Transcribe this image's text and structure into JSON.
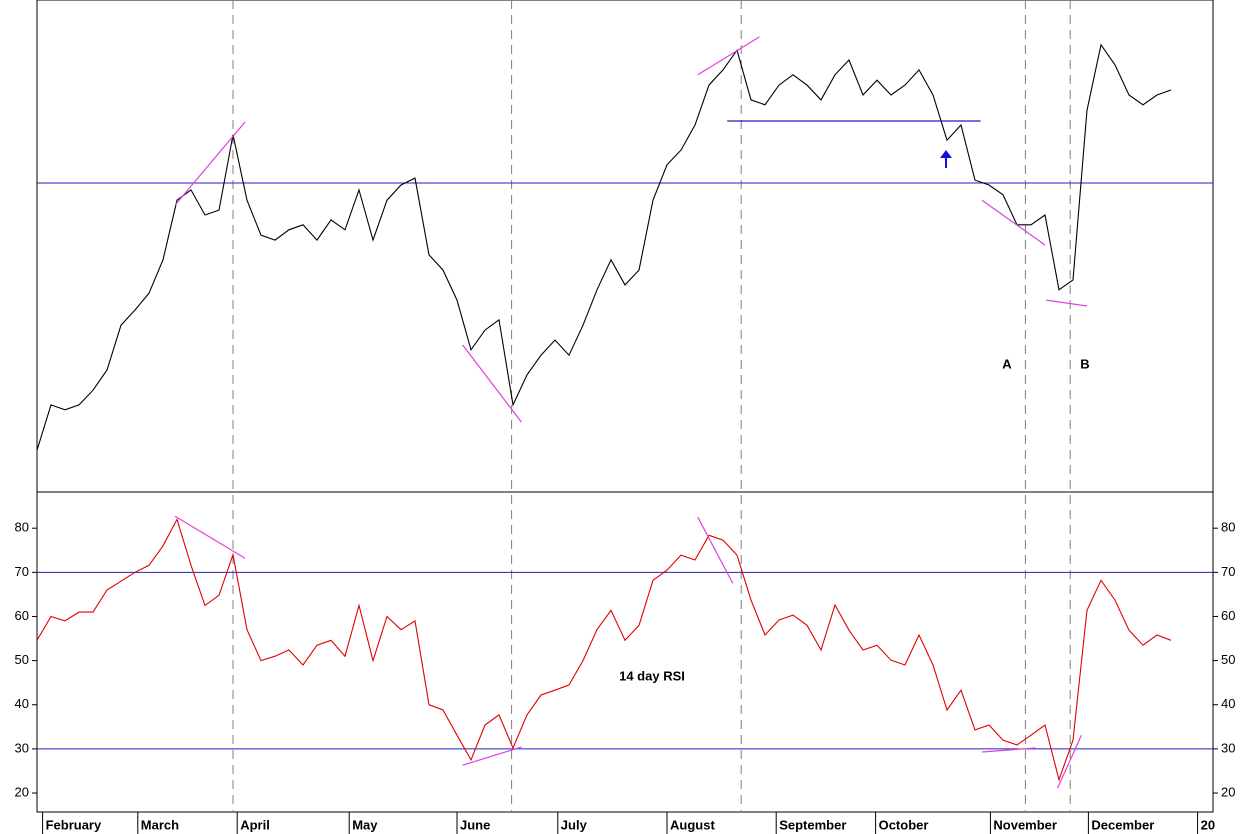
{
  "chart_data": [
    {
      "type": "line",
      "x": [
        0,
        1,
        2,
        3,
        4,
        5,
        6,
        7,
        8,
        9,
        10,
        11,
        12,
        13,
        14,
        15,
        16,
        17,
        18,
        19,
        20,
        21,
        22,
        23,
        24,
        25,
        26,
        27,
        28,
        29,
        30,
        31,
        32,
        33,
        34,
        35,
        36,
        37,
        38,
        39,
        40,
        41,
        42,
        43,
        44,
        45,
        46,
        47,
        48,
        49,
        50,
        51,
        52,
        53,
        54,
        55,
        56,
        57,
        58,
        59,
        60,
        61,
        62,
        63,
        64,
        65,
        66,
        67,
        68,
        69,
        70,
        71,
        72,
        73,
        74,
        75,
        76,
        77,
        78,
        79,
        80,
        81
      ],
      "series": [
        {
          "color": "#000000",
          "values": [
            8.5,
            17.7,
            16.7,
            17.7,
            20.7,
            24.8,
            33.9,
            37,
            40.4,
            47.2,
            59.3,
            61.4,
            56.3,
            57.3,
            72.6,
            59.3,
            52.2,
            51.2,
            53.3,
            54.3,
            51.2,
            55.3,
            53.3,
            61.4,
            51.2,
            59.3,
            62.4,
            63.8,
            48.2,
            45.1,
            39,
            28.9,
            32.9,
            35,
            17.7,
            23.8,
            27.8,
            30.9,
            27.8,
            33.9,
            41.1,
            47.2,
            42.1,
            45.1,
            59.3,
            66.5,
            69.5,
            74.6,
            82.7,
            85.8,
            89.8,
            79.7,
            78.7,
            82.7,
            84.8,
            82.7,
            79.7,
            84.8,
            87.8,
            80.7,
            83.7,
            80.7,
            82.7,
            85.8,
            80.7,
            71.5,
            74.6,
            63.4,
            62.4,
            60.4,
            54.3,
            54.3,
            56.3,
            41.1,
            43.1,
            77.6,
            90.9,
            86.8,
            80.7,
            78.7,
            80.7,
            81.7
          ]
        }
      ],
      "xlim": [
        0,
        84
      ],
      "ylim": [
        0,
        100
      ],
      "hlines": [
        62.8
      ],
      "vlines": [
        14,
        33.9,
        50.3,
        70.6,
        73.8
      ],
      "segments": [
        {
          "color": "#e040e0",
          "x": [
            9.86,
            14.86
          ],
          "y": [
            58.3,
            75.2
          ]
        },
        {
          "color": "#e040e0",
          "x": [
            30.4,
            34.6
          ],
          "y": [
            29.9,
            14.2
          ]
        },
        {
          "color": "#e040e0",
          "x": [
            47.2,
            51.6
          ],
          "y": [
            84.8,
            92.5
          ]
        },
        {
          "color": "#e040e0",
          "x": [
            67.5,
            72
          ],
          "y": [
            59.3,
            50.2
          ]
        },
        {
          "color": "#e040e0",
          "x": [
            72.1,
            75
          ],
          "y": [
            39,
            37.8
          ]
        },
        {
          "color": "#2020c0",
          "x": [
            49.3,
            67.4
          ],
          "y": [
            75.4,
            75.4
          ]
        }
      ],
      "annotations": [
        "A",
        "B"
      ]
    },
    {
      "type": "line",
      "title": "14 day RSI",
      "x": [
        0,
        1,
        2,
        3,
        4,
        5,
        6,
        7,
        8,
        9,
        10,
        11,
        12,
        13,
        14,
        15,
        16,
        17,
        18,
        19,
        20,
        21,
        22,
        23,
        24,
        25,
        26,
        27,
        28,
        29,
        30,
        31,
        32,
        33,
        34,
        35,
        36,
        37,
        38,
        39,
        40,
        41,
        42,
        43,
        44,
        45,
        46,
        47,
        48,
        49,
        50,
        51,
        52,
        53,
        54,
        55,
        56,
        57,
        58,
        59,
        60,
        61,
        62,
        63,
        64,
        65,
        66,
        67,
        68,
        69,
        70,
        71,
        72,
        73,
        74,
        75,
        76,
        77,
        78,
        79,
        80,
        81
      ],
      "series": [
        {
          "color": "#e00000",
          "values": [
            54.6,
            60,
            59,
            61,
            61,
            66,
            68,
            70,
            71.6,
            76,
            82,
            71.6,
            62.5,
            64.8,
            74,
            57,
            50,
            51,
            52.4,
            49,
            53.5,
            54.6,
            51,
            62.5,
            50,
            60,
            57,
            59,
            40,
            38.8,
            33.1,
            27.5,
            35.4,
            37.7,
            30.2,
            37.7,
            42.2,
            43.3,
            44.5,
            50,
            57,
            61.4,
            54.6,
            58,
            68.2,
            70.5,
            73.9,
            72.8,
            78.4,
            77.3,
            73.9,
            63.7,
            55.8,
            59.2,
            60.3,
            58,
            52.4,
            62.6,
            56.9,
            52.4,
            53.5,
            50.1,
            49,
            55.8,
            49,
            38.8,
            43.3,
            34.3,
            35.4,
            32,
            30.9,
            33.1,
            35.4,
            23,
            32,
            61.4,
            68.2,
            63.7,
            56.9,
            53.5,
            55.8,
            54.6
          ]
        }
      ],
      "xlim": [
        0,
        84
      ],
      "ylim": [
        15.7,
        88.2
      ],
      "yticks": [
        20,
        30,
        40,
        50,
        60,
        70,
        80
      ],
      "xticks": [
        {
          "value": 0.4,
          "label": "February"
        },
        {
          "value": 7.2,
          "label": "March"
        },
        {
          "value": 14.3,
          "label": "April"
        },
        {
          "value": 22.3,
          "label": "May"
        },
        {
          "value": 30,
          "label": "June"
        },
        {
          "value": 37.2,
          "label": "July"
        },
        {
          "value": 45,
          "label": "August"
        },
        {
          "value": 52.8,
          "label": "September"
        },
        {
          "value": 59.9,
          "label": "October"
        },
        {
          "value": 68.1,
          "label": "November"
        },
        {
          "value": 75.1,
          "label": "December"
        },
        {
          "value": 82.9,
          "label": "20"
        }
      ],
      "hlines": [
        70,
        30
      ],
      "segments": [
        {
          "color": "#e040e0",
          "x": [
            9.86,
            14.86
          ],
          "y": [
            82.7,
            73.2
          ]
        },
        {
          "color": "#e040e0",
          "x": [
            30.4,
            34.6
          ],
          "y": [
            26.3,
            30.4
          ]
        },
        {
          "color": "#e040e0",
          "x": [
            47.2,
            49.7
          ],
          "y": [
            82.5,
            67.5
          ]
        },
        {
          "color": "#e040e0",
          "x": [
            67.5,
            71.3
          ],
          "y": [
            29.3,
            30.2
          ]
        },
        {
          "color": "#e040e0",
          "x": [
            72.9,
            74.6
          ],
          "y": [
            21.1,
            33.1
          ]
        }
      ]
    }
  ]
}
